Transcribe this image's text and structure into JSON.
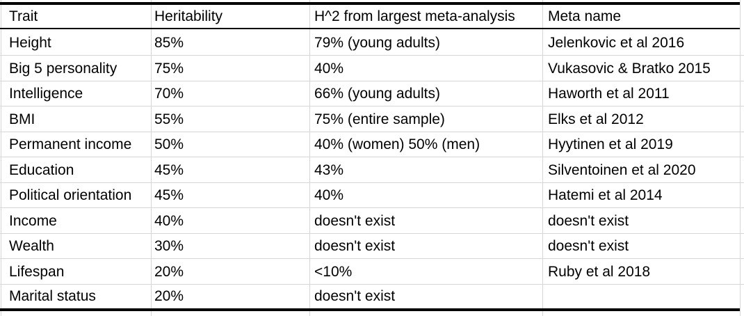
{
  "colors": {
    "background": "#ffffff",
    "gridline": "#d6d6d6",
    "outer_border": "#000000",
    "text": "#000000"
  },
  "table": {
    "columns": [
      "Trait",
      "Heritability",
      "H^2 from largest meta-analysis",
      "Meta name"
    ],
    "rows": [
      [
        "Height",
        "85%",
        "79% (young adults)",
        "Jelenkovic et al 2016"
      ],
      [
        "Big 5 personality",
        "75%",
        "40%",
        "Vukasovic & Bratko 2015"
      ],
      [
        "Intelligence",
        "70%",
        "66% (young adults)",
        "Haworth et al 2011"
      ],
      [
        "BMI",
        "55%",
        "75% (entire sample)",
        "Elks et al 2012"
      ],
      [
        "Permanent income",
        "50%",
        "40% (women) 50% (men)",
        "Hyytinen et al 2019"
      ],
      [
        "Education",
        "45%",
        "43%",
        "Silventoinen et al 2020"
      ],
      [
        "Political orientation",
        "45%",
        "40%",
        "Hatemi et al 2014"
      ],
      [
        "Income",
        "40%",
        "doesn't exist",
        "doesn't exist"
      ],
      [
        "Wealth",
        "30%",
        "doesn't exist",
        "doesn't exist"
      ],
      [
        "Lifespan",
        "20%",
        "<10%",
        "Ruby et al 2018"
      ],
      [
        "Marital status",
        "20%",
        "doesn't exist",
        ""
      ]
    ]
  }
}
